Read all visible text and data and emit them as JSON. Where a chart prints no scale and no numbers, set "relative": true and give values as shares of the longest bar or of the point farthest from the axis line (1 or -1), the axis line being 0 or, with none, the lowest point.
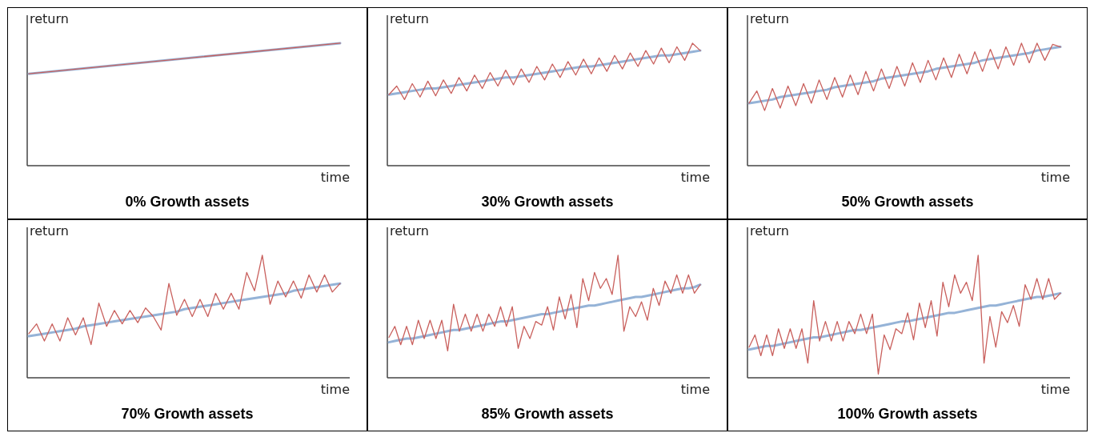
{
  "chart_data": [
    {
      "type": "line",
      "relative": true,
      "title": "0% Growth assets",
      "ylabel": "return",
      "xlabel": "time",
      "categories": [
        null,
        null
      ],
      "series": [
        {
          "color": "#95b3d7",
          "values": [
            0.75,
            1
          ]
        },
        {
          "color": "#c9605d",
          "values": [
            0.75,
            1
          ]
        }
      ]
    },
    {
      "type": "line",
      "relative": true,
      "title": "30% Growth assets",
      "ylabel": "return",
      "xlabel": "time",
      "categories": [
        null,
        null,
        null,
        null,
        null,
        null,
        null,
        null,
        null,
        null,
        null,
        null,
        null,
        null,
        null,
        null,
        null,
        null,
        null,
        null,
        null,
        null,
        null,
        null,
        null,
        null,
        null,
        null,
        null,
        null,
        null,
        null,
        null,
        null,
        null,
        null,
        null,
        null,
        null,
        null,
        null
      ],
      "series": [
        {
          "color": "#95b3d7",
          "values": [
            0.58,
            0.59,
            0.6,
            0.61,
            0.62,
            0.63,
            0.63,
            0.64,
            0.65,
            0.66,
            0.67,
            0.68,
            0.69,
            0.7,
            0.71,
            0.72,
            0.72,
            0.73,
            0.74,
            0.75,
            0.76,
            0.77,
            0.78,
            0.79,
            0.8,
            0.81,
            0.81,
            0.82,
            0.83,
            0.84,
            0.85,
            0.86,
            0.87,
            0.88,
            0.89,
            0.9,
            0.9,
            0.91,
            0.92,
            0.93,
            0.94
          ]
        },
        {
          "color": "#c9605d",
          "values": [
            0.58,
            0.65,
            0.54,
            0.67,
            0.56,
            0.69,
            0.57,
            0.7,
            0.59,
            0.72,
            0.61,
            0.74,
            0.63,
            0.76,
            0.65,
            0.78,
            0.66,
            0.79,
            0.68,
            0.81,
            0.7,
            0.83,
            0.72,
            0.85,
            0.74,
            0.87,
            0.75,
            0.88,
            0.77,
            0.9,
            0.79,
            0.92,
            0.81,
            0.94,
            0.83,
            0.96,
            0.84,
            0.97,
            0.86,
            1,
            0.94
          ]
        }
      ]
    },
    {
      "type": "line",
      "relative": true,
      "title": "50% Growth assets",
      "ylabel": "return",
      "xlabel": "time",
      "categories": [
        null,
        null,
        null,
        null,
        null,
        null,
        null,
        null,
        null,
        null,
        null,
        null,
        null,
        null,
        null,
        null,
        null,
        null,
        null,
        null,
        null,
        null,
        null,
        null,
        null,
        null,
        null,
        null,
        null,
        null,
        null,
        null,
        null,
        null,
        null,
        null,
        null,
        null,
        null,
        null,
        null
      ],
      "series": [
        {
          "color": "#95b3d7",
          "values": [
            0.51,
            0.52,
            0.53,
            0.54,
            0.56,
            0.57,
            0.58,
            0.59,
            0.6,
            0.61,
            0.62,
            0.64,
            0.65,
            0.66,
            0.67,
            0.68,
            0.69,
            0.71,
            0.72,
            0.73,
            0.74,
            0.75,
            0.76,
            0.77,
            0.79,
            0.8,
            0.81,
            0.82,
            0.83,
            0.84,
            0.86,
            0.87,
            0.88,
            0.89,
            0.9,
            0.91,
            0.92,
            0.94,
            0.95,
            0.96,
            0.97
          ]
        },
        {
          "color": "#c9605d",
          "values": [
            0.51,
            0.61,
            0.45,
            0.63,
            0.47,
            0.65,
            0.49,
            0.67,
            0.51,
            0.7,
            0.54,
            0.72,
            0.56,
            0.74,
            0.58,
            0.77,
            0.61,
            0.79,
            0.63,
            0.81,
            0.65,
            0.84,
            0.68,
            0.86,
            0.7,
            0.88,
            0.72,
            0.91,
            0.75,
            0.93,
            0.77,
            0.95,
            0.79,
            0.97,
            0.82,
            1,
            0.84,
            1,
            0.86,
            0.99,
            0.97
          ]
        }
      ]
    },
    {
      "type": "line",
      "relative": true,
      "title": "70% Growth assets",
      "ylabel": "return",
      "xlabel": "time",
      "categories": [
        null,
        null,
        null,
        null,
        null,
        null,
        null,
        null,
        null,
        null,
        null,
        null,
        null,
        null,
        null,
        null,
        null,
        null,
        null,
        null,
        null,
        null,
        null,
        null,
        null,
        null,
        null,
        null,
        null,
        null,
        null,
        null,
        null,
        null,
        null,
        null,
        null,
        null,
        null,
        null,
        null
      ],
      "series": [
        {
          "color": "#95b3d7",
          "values": [
            0.34,
            0.35,
            0.36,
            0.37,
            0.38,
            0.39,
            0.4,
            0.42,
            0.43,
            0.44,
            0.45,
            0.46,
            0.47,
            0.48,
            0.49,
            0.5,
            0.51,
            0.52,
            0.53,
            0.54,
            0.56,
            0.57,
            0.58,
            0.59,
            0.6,
            0.61,
            0.62,
            0.63,
            0.64,
            0.65,
            0.66,
            0.67,
            0.68,
            0.69,
            0.71,
            0.72,
            0.73,
            0.74,
            0.75,
            0.76,
            0.77
          ]
        },
        {
          "color": "#c9605d",
          "values": [
            0.36,
            0.44,
            0.3,
            0.44,
            0.3,
            0.49,
            0.35,
            0.49,
            0.27,
            0.61,
            0.42,
            0.55,
            0.44,
            0.55,
            0.45,
            0.57,
            0.5,
            0.39,
            0.77,
            0.51,
            0.64,
            0.5,
            0.64,
            0.5,
            0.69,
            0.56,
            0.69,
            0.56,
            0.86,
            0.71,
            1,
            0.6,
            0.79,
            0.66,
            0.79,
            0.65,
            0.84,
            0.7,
            0.84,
            0.7,
            0.77
          ]
        }
      ]
    },
    {
      "type": "line",
      "relative": true,
      "title": "85% Growth assets",
      "ylabel": "return",
      "xlabel": "time",
      "categories": [
        null,
        null,
        null,
        null,
        null,
        null,
        null,
        null,
        null,
        null,
        null,
        null,
        null,
        null,
        null,
        null,
        null,
        null,
        null,
        null,
        null,
        null,
        null,
        null,
        null,
        null,
        null,
        null,
        null,
        null,
        null,
        null,
        null,
        null,
        null,
        null,
        null,
        null,
        null,
        null,
        null,
        null,
        null,
        null,
        null,
        null,
        null,
        null,
        null,
        null,
        null,
        null,
        null,
        null
      ],
      "series": [
        {
          "color": "#95b3d7",
          "values": [
            0.29,
            0.3,
            0.31,
            0.32,
            0.32,
            0.33,
            0.34,
            0.35,
            0.36,
            0.37,
            0.38,
            0.39,
            0.39,
            0.4,
            0.41,
            0.42,
            0.43,
            0.44,
            0.45,
            0.46,
            0.46,
            0.47,
            0.48,
            0.49,
            0.5,
            0.51,
            0.52,
            0.52,
            0.53,
            0.54,
            0.55,
            0.56,
            0.57,
            0.58,
            0.59,
            0.59,
            0.6,
            0.61,
            0.62,
            0.63,
            0.64,
            0.65,
            0.66,
            0.66,
            0.67,
            0.68,
            0.69,
            0.7,
            0.71,
            0.72,
            0.73,
            0.73,
            0.74,
            0.76
          ]
        },
        {
          "color": "#c9605d",
          "values": [
            0.33,
            0.42,
            0.27,
            0.42,
            0.27,
            0.47,
            0.32,
            0.47,
            0.32,
            0.47,
            0.22,
            0.6,
            0.38,
            0.52,
            0.38,
            0.52,
            0.38,
            0.52,
            0.42,
            0.58,
            0.42,
            0.58,
            0.24,
            0.42,
            0.32,
            0.46,
            0.43,
            0.58,
            0.39,
            0.66,
            0.48,
            0.68,
            0.41,
            0.81,
            0.63,
            0.86,
            0.73,
            0.81,
            0.68,
            1,
            0.38,
            0.58,
            0.5,
            0.62,
            0.47,
            0.73,
            0.59,
            0.79,
            0.69,
            0.84,
            0.69,
            0.84,
            0.69,
            0.76
          ]
        }
      ]
    },
    {
      "type": "line",
      "relative": true,
      "title": "100% Growth assets",
      "ylabel": "return",
      "xlabel": "time",
      "categories": [
        null,
        null,
        null,
        null,
        null,
        null,
        null,
        null,
        null,
        null,
        null,
        null,
        null,
        null,
        null,
        null,
        null,
        null,
        null,
        null,
        null,
        null,
        null,
        null,
        null,
        null,
        null,
        null,
        null,
        null,
        null,
        null,
        null,
        null,
        null,
        null,
        null,
        null,
        null,
        null,
        null,
        null,
        null,
        null,
        null,
        null,
        null,
        null,
        null,
        null,
        null,
        null,
        null,
        null
      ],
      "series": [
        {
          "color": "#95b3d7",
          "values": [
            0.23,
            0.24,
            0.25,
            0.26,
            0.26,
            0.27,
            0.28,
            0.29,
            0.3,
            0.31,
            0.32,
            0.33,
            0.33,
            0.34,
            0.35,
            0.36,
            0.37,
            0.38,
            0.39,
            0.39,
            0.4,
            0.41,
            0.42,
            0.43,
            0.44,
            0.45,
            0.46,
            0.46,
            0.47,
            0.48,
            0.49,
            0.5,
            0.51,
            0.52,
            0.53,
            0.53,
            0.54,
            0.55,
            0.56,
            0.57,
            0.58,
            0.59,
            0.59,
            0.6,
            0.61,
            0.62,
            0.63,
            0.64,
            0.65,
            0.66,
            0.66,
            0.67,
            0.68,
            0.69
          ]
        },
        {
          "color": "#c9605d",
          "values": [
            0.25,
            0.35,
            0.18,
            0.35,
            0.18,
            0.4,
            0.24,
            0.4,
            0.24,
            0.4,
            0.12,
            0.63,
            0.3,
            0.46,
            0.3,
            0.46,
            0.3,
            0.46,
            0.36,
            0.52,
            0.36,
            0.52,
            0.03,
            0.35,
            0.23,
            0.4,
            0.36,
            0.53,
            0.31,
            0.61,
            0.41,
            0.63,
            0.34,
            0.78,
            0.58,
            0.84,
            0.69,
            0.78,
            0.63,
            1,
            0.12,
            0.5,
            0.25,
            0.54,
            0.45,
            0.59,
            0.42,
            0.76,
            0.64,
            0.81,
            0.64,
            0.81,
            0.64,
            0.69
          ]
        }
      ]
    }
  ]
}
